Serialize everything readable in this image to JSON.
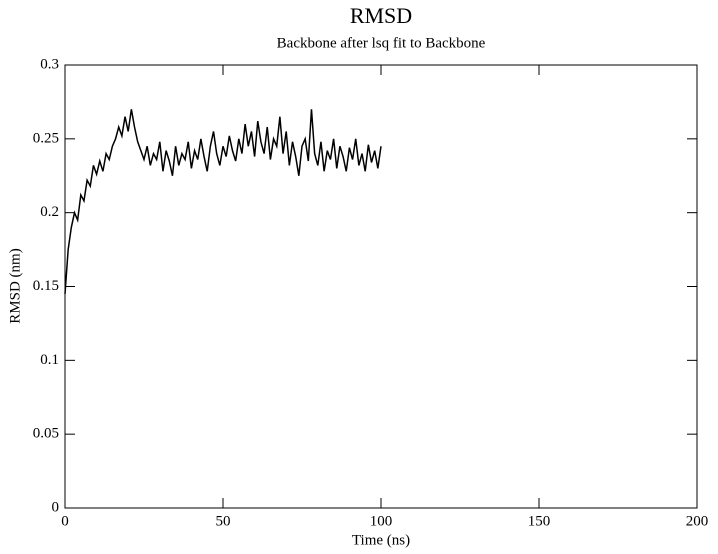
{
  "chart_data": {
    "type": "line",
    "title": "RMSD",
    "subtitle": "Backbone after lsq fit to Backbone",
    "xlabel": "Time (ns)",
    "ylabel": "RMSD (nm)",
    "color": "#000000",
    "xlim": [
      0,
      200
    ],
    "xticks": [
      0,
      50,
      100,
      150,
      200
    ],
    "ylim": [
      0,
      0.3
    ],
    "yticks": [
      0,
      0.05,
      0.1,
      0.15,
      0.2,
      0.25,
      0.3
    ],
    "x": [
      0,
      1,
      2,
      3,
      4,
      5,
      6,
      7,
      8,
      9,
      10,
      11,
      12,
      13,
      14,
      15,
      16,
      17,
      18,
      19,
      20,
      21,
      22,
      23,
      24,
      25,
      26,
      27,
      28,
      29,
      30,
      31,
      32,
      33,
      34,
      35,
      36,
      37,
      38,
      39,
      40,
      41,
      42,
      43,
      44,
      45,
      46,
      47,
      48,
      49,
      50,
      51,
      52,
      53,
      54,
      55,
      56,
      57,
      58,
      59,
      60,
      61,
      62,
      63,
      64,
      65,
      66,
      67,
      68,
      69,
      70,
      71,
      72,
      73,
      74,
      75,
      76,
      77,
      78,
      79,
      80,
      81,
      82,
      83,
      84,
      85,
      86,
      87,
      88,
      89,
      90,
      91,
      92,
      93,
      94,
      95,
      96,
      97,
      98,
      99,
      100
    ],
    "values": [
      0.145,
      0.175,
      0.19,
      0.2,
      0.195,
      0.212,
      0.208,
      0.222,
      0.218,
      0.232,
      0.226,
      0.235,
      0.228,
      0.24,
      0.236,
      0.245,
      0.25,
      0.258,
      0.252,
      0.265,
      0.255,
      0.27,
      0.258,
      0.248,
      0.242,
      0.236,
      0.245,
      0.232,
      0.24,
      0.236,
      0.248,
      0.228,
      0.242,
      0.235,
      0.225,
      0.245,
      0.232,
      0.24,
      0.236,
      0.248,
      0.23,
      0.242,
      0.236,
      0.25,
      0.238,
      0.228,
      0.245,
      0.255,
      0.24,
      0.232,
      0.245,
      0.238,
      0.252,
      0.242,
      0.235,
      0.25,
      0.24,
      0.26,
      0.245,
      0.255,
      0.238,
      0.262,
      0.248,
      0.24,
      0.258,
      0.236,
      0.25,
      0.245,
      0.265,
      0.24,
      0.255,
      0.232,
      0.248,
      0.238,
      0.225,
      0.245,
      0.25,
      0.235,
      0.27,
      0.24,
      0.232,
      0.248,
      0.228,
      0.242,
      0.236,
      0.25,
      0.23,
      0.245,
      0.238,
      0.228,
      0.244,
      0.236,
      0.25,
      0.232,
      0.24,
      0.228,
      0.246,
      0.234,
      0.242,
      0.23,
      0.245
    ]
  }
}
